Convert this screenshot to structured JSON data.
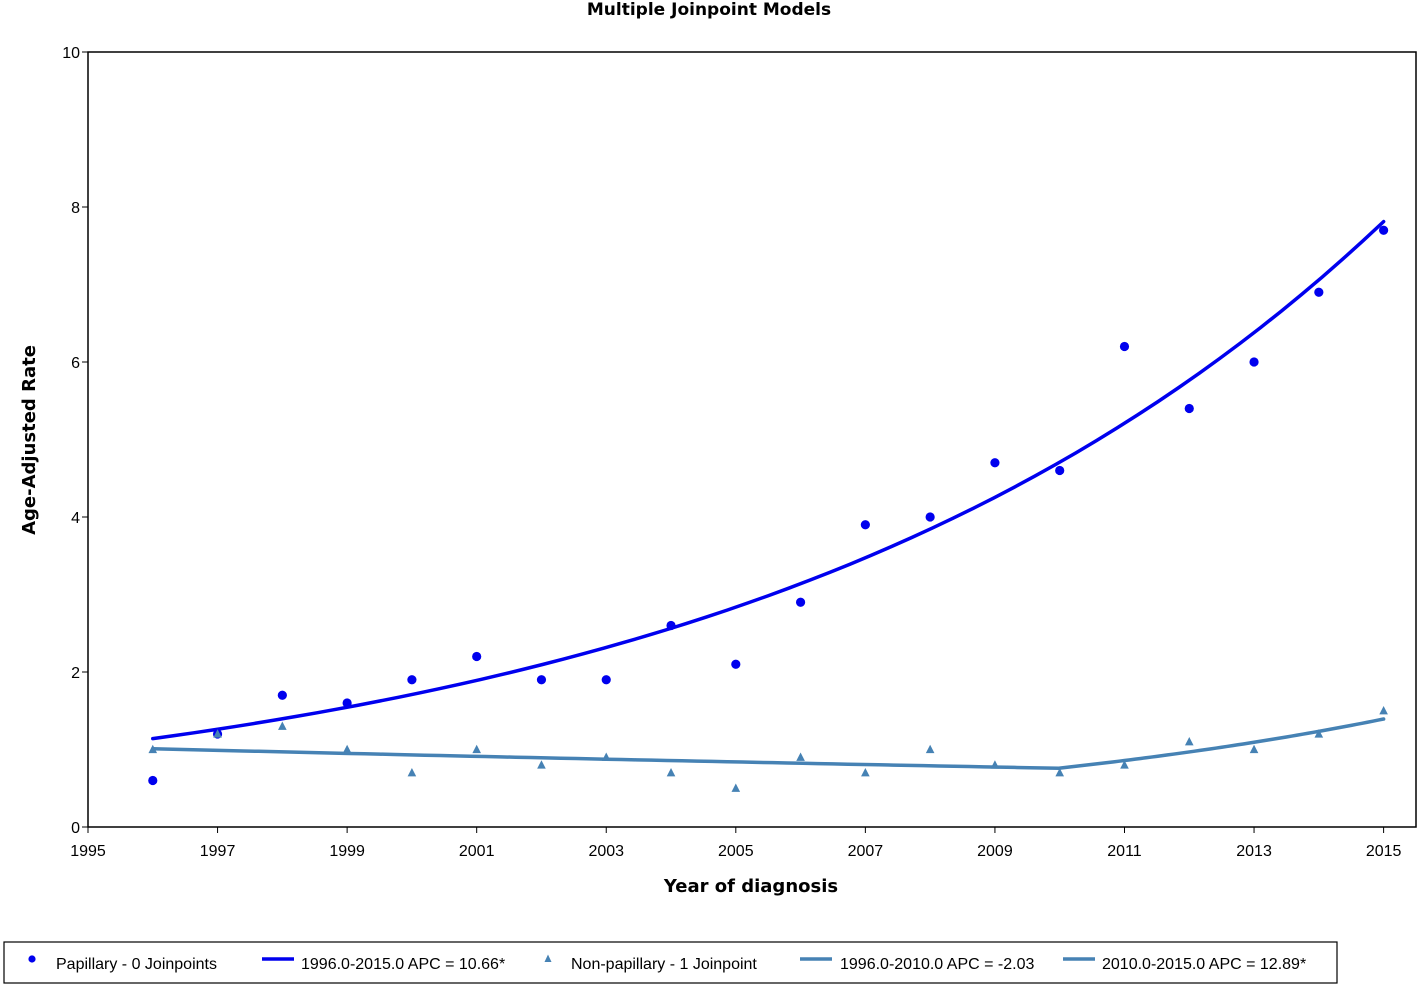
{
  "chart_data": {
    "type": "scatter",
    "title": "Multiple Joinpoint Models",
    "xlabel": "Year of diagnosis",
    "ylabel": "Age-Adjusted Rate",
    "xlim": [
      1995,
      2015.5
    ],
    "ylim": [
      0,
      10
    ],
    "xticks": [
      1995,
      1997,
      1999,
      2001,
      2003,
      2005,
      2007,
      2009,
      2011,
      2013,
      2015
    ],
    "yticks": [
      0,
      2,
      4,
      6,
      8,
      10
    ],
    "grid": false,
    "legend_position": "bottom",
    "colors": {
      "papillary": "#0000ee",
      "non_papillary": "#4682b4"
    },
    "series": [
      {
        "name": "Papillary - 0 Joinpoints",
        "kind": "points",
        "marker": "circle",
        "color": "#0000ee",
        "x": [
          1996,
          1997,
          1998,
          1999,
          2000,
          2001,
          2002,
          2003,
          2004,
          2005,
          2006,
          2007,
          2008,
          2009,
          2010,
          2011,
          2012,
          2013,
          2014,
          2015
        ],
        "y": [
          0.6,
          1.2,
          1.7,
          1.6,
          1.9,
          2.2,
          1.9,
          1.9,
          2.6,
          2.1,
          2.9,
          3.9,
          4.0,
          4.7,
          4.6,
          6.2,
          5.4,
          6.0,
          6.9,
          7.7
        ]
      },
      {
        "name": "1996.0-2015.0 APC  = 10.66*",
        "kind": "fit",
        "color": "#0000ee",
        "start_year": 1996,
        "end_year": 2015,
        "start_value": 1.14,
        "apc": 10.66
      },
      {
        "name": "Non-papillary - 1 Joinpoint",
        "kind": "points",
        "marker": "triangle",
        "color": "#4682b4",
        "x": [
          1996,
          1997,
          1998,
          1999,
          2000,
          2001,
          2002,
          2003,
          2004,
          2005,
          2006,
          2007,
          2008,
          2009,
          2010,
          2011,
          2012,
          2013,
          2014,
          2015
        ],
        "y": [
          1.0,
          1.2,
          1.3,
          1.0,
          0.7,
          1.0,
          0.8,
          0.9,
          0.7,
          0.5,
          0.9,
          0.7,
          1.0,
          0.8,
          0.7,
          0.8,
          1.1,
          1.0,
          1.2,
          1.5
        ]
      },
      {
        "name": "1996.0-2010.0 APC  = -2.03",
        "kind": "fit",
        "color": "#4682b4",
        "start_year": 1996,
        "end_year": 2010,
        "start_value": 1.01,
        "apc": -2.03
      },
      {
        "name": "2010.0-2015.0 APC  = 12.89*",
        "kind": "fit",
        "color": "#4682b4",
        "start_year": 2010,
        "end_year": 2015,
        "start_value": 0.76,
        "apc": 12.89
      }
    ]
  }
}
